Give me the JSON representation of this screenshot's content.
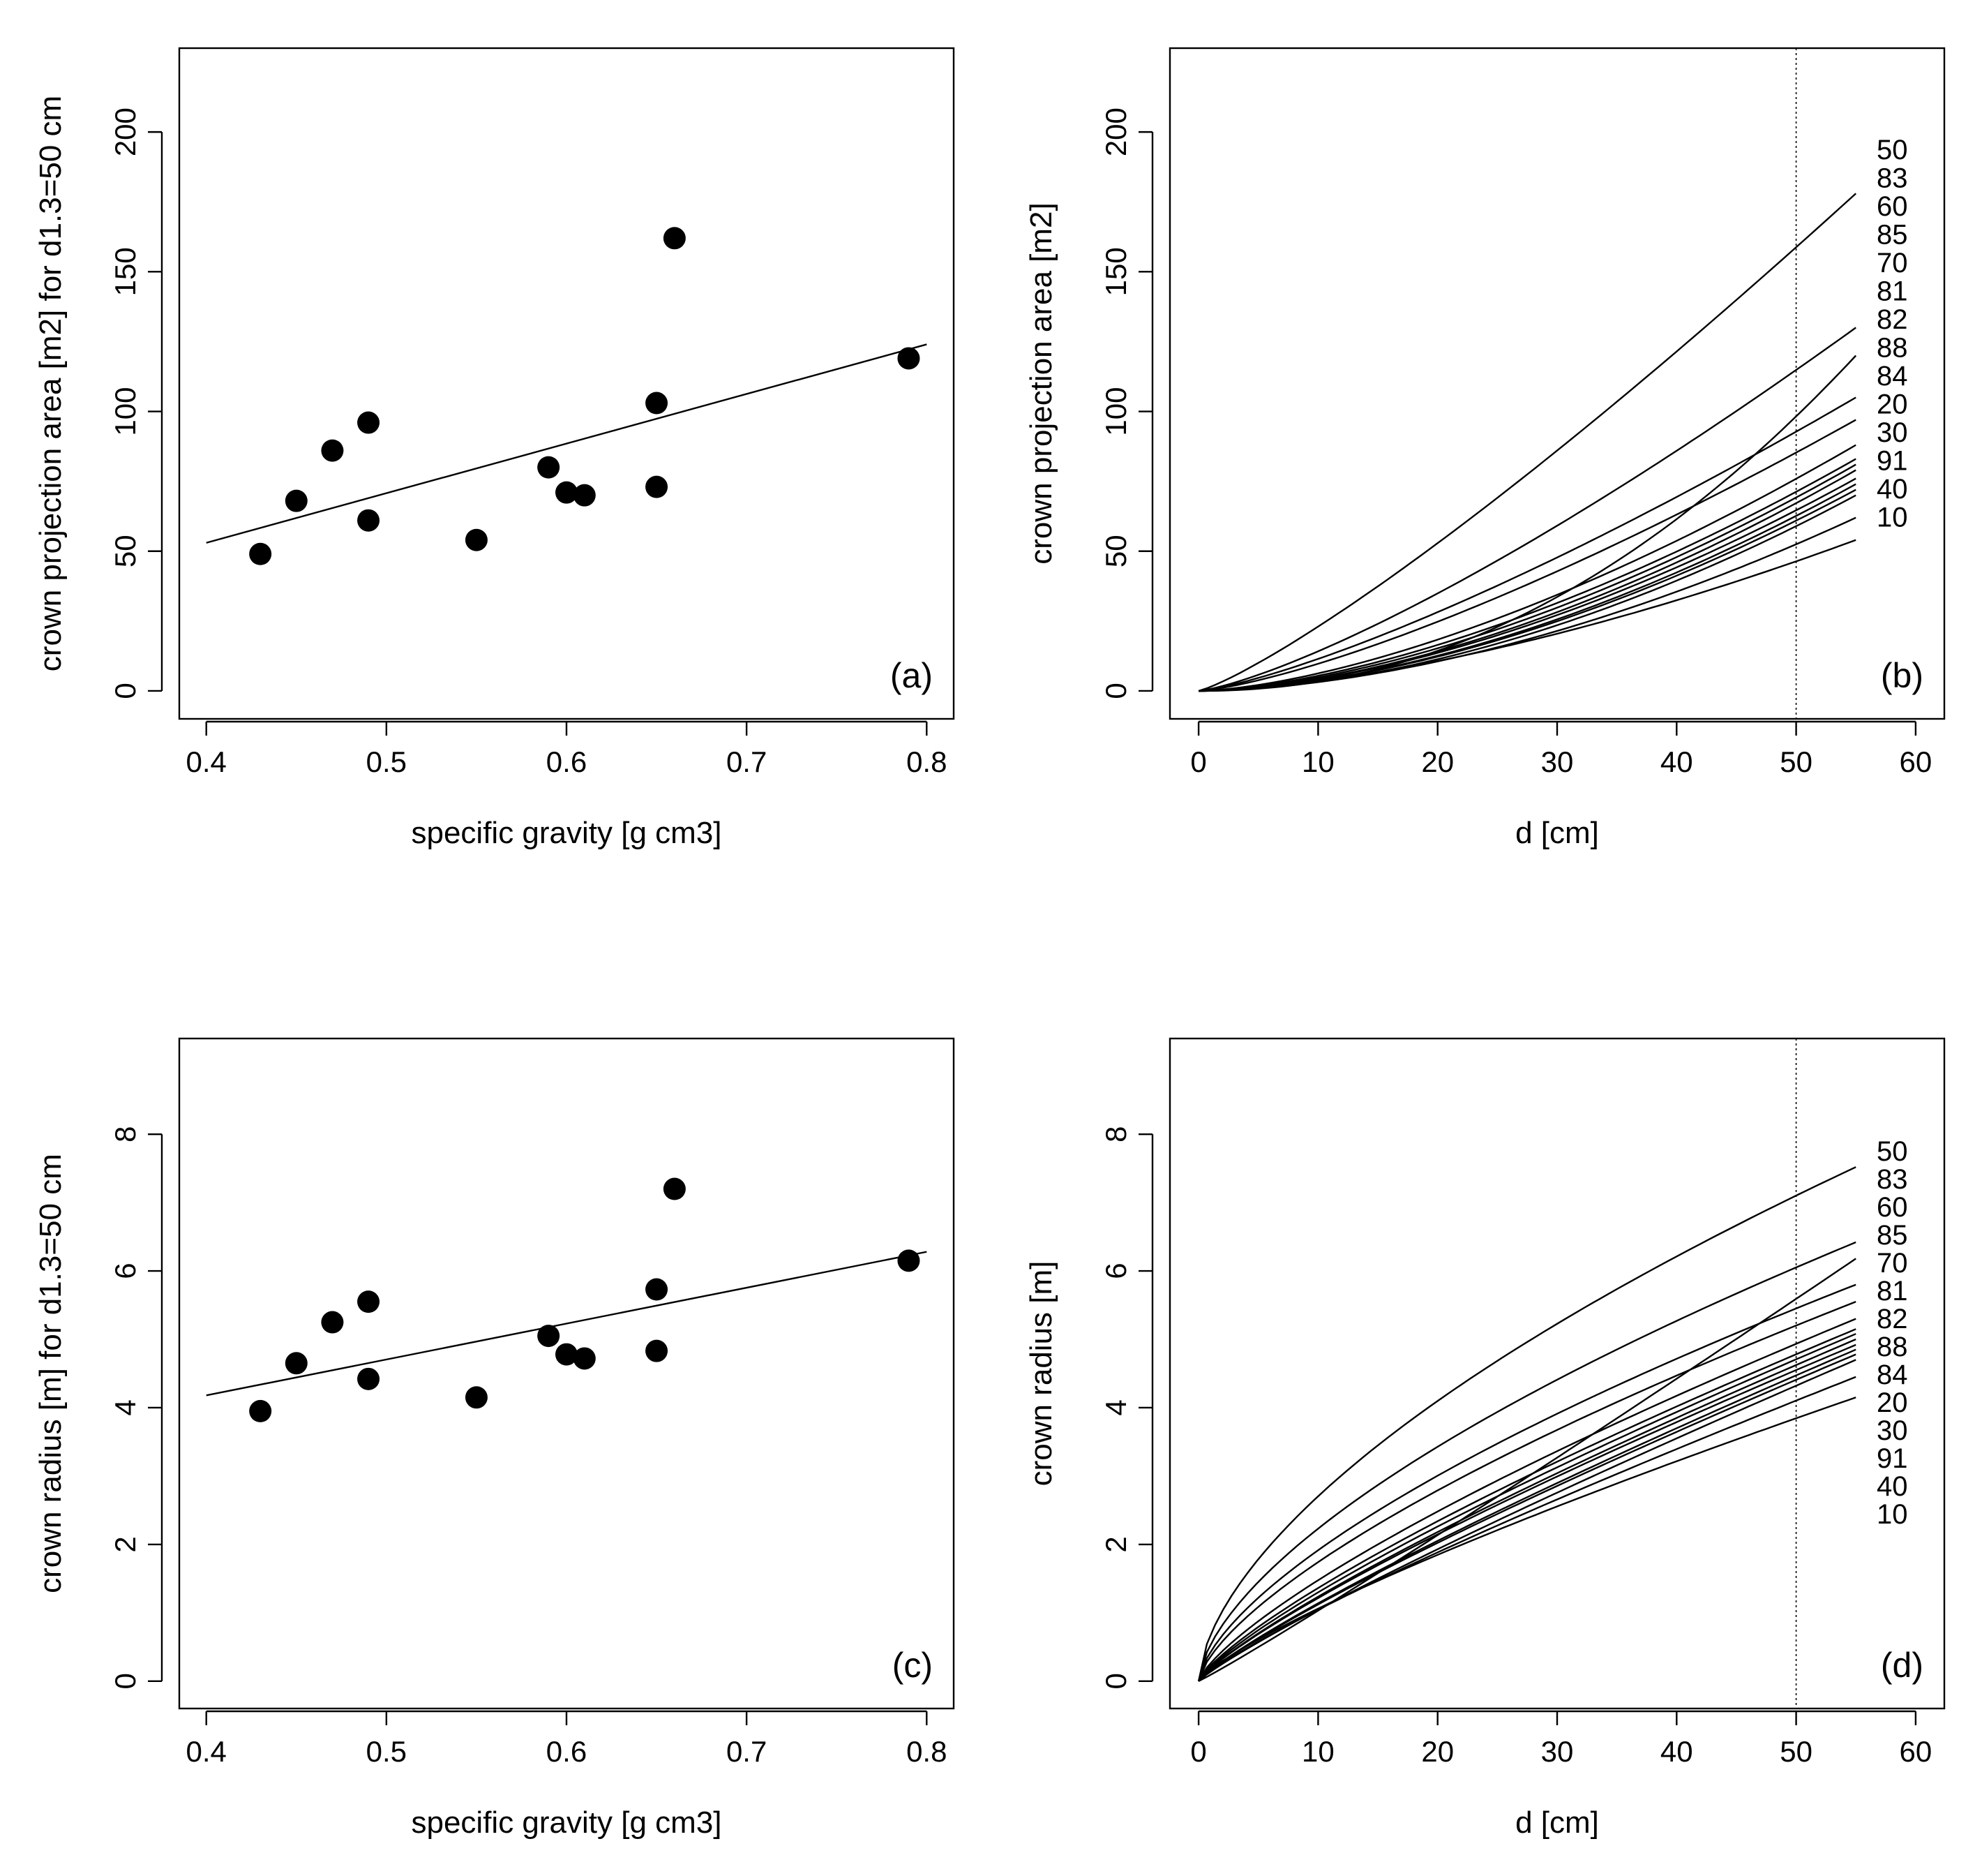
{
  "colors": {
    "ink": "#000000",
    "background": "#ffffff"
  },
  "chart_data": [
    {
      "id": "a",
      "type": "scatter",
      "panel_label": "(a)",
      "xlabel": "specific gravity [g cm3]",
      "ylabel": "crown projection area [m2] for d1.3=50 cm",
      "xlim": [
        0.385,
        0.815
      ],
      "ylim": [
        -10,
        230
      ],
      "xticks": [
        0.4,
        0.5,
        0.6,
        0.7,
        0.8
      ],
      "xtick_labels": [
        "0.4",
        "0.5",
        "0.6",
        "0.7",
        "0.8"
      ],
      "yticks": [
        0,
        50,
        100,
        150,
        200
      ],
      "ytick_labels": [
        "0",
        "50",
        "100",
        "150",
        "200"
      ],
      "points": [
        {
          "x": 0.43,
          "y": 49
        },
        {
          "x": 0.45,
          "y": 68
        },
        {
          "x": 0.47,
          "y": 86
        },
        {
          "x": 0.49,
          "y": 96
        },
        {
          "x": 0.49,
          "y": 61
        },
        {
          "x": 0.55,
          "y": 54
        },
        {
          "x": 0.59,
          "y": 80
        },
        {
          "x": 0.6,
          "y": 71
        },
        {
          "x": 0.61,
          "y": 70
        },
        {
          "x": 0.65,
          "y": 103
        },
        {
          "x": 0.65,
          "y": 73
        },
        {
          "x": 0.66,
          "y": 162
        },
        {
          "x": 0.79,
          "y": 119
        }
      ],
      "fit_line": [
        {
          "x": 0.4,
          "y": 53
        },
        {
          "x": 0.8,
          "y": 124
        }
      ]
    },
    {
      "id": "b",
      "type": "line",
      "panel_label": "(b)",
      "xlabel": "d [cm]",
      "ylabel": "crown projection area [m2]",
      "xlim": [
        -2.4,
        62.4
      ],
      "ylim": [
        -10,
        230
      ],
      "xticks": [
        0,
        10,
        20,
        30,
        40,
        50,
        60
      ],
      "xtick_labels": [
        "0",
        "10",
        "20",
        "30",
        "40",
        "50",
        "60"
      ],
      "yticks": [
        0,
        50,
        100,
        150,
        200
      ],
      "ytick_labels": [
        "0",
        "50",
        "100",
        "150",
        "200"
      ],
      "reference_line_x": 50,
      "x_max": 55,
      "series_end_values": [
        178,
        130,
        120,
        105,
        97,
        88,
        83,
        81,
        79,
        76,
        74,
        72,
        70,
        62,
        54
      ],
      "series_exponents": [
        1.2,
        1.3,
        2.1,
        1.3,
        1.35,
        1.55,
        1.6,
        1.65,
        1.7,
        1.7,
        1.75,
        1.75,
        1.8,
        1.75,
        1.6
      ],
      "curve_labels": [
        "50",
        "83",
        "60",
        "85",
        "70",
        "81",
        "82",
        "88",
        "84",
        "20",
        "30",
        "91",
        "40",
        "10"
      ]
    },
    {
      "id": "c",
      "type": "scatter",
      "panel_label": "(c)",
      "xlabel": "specific gravity [g cm3]",
      "ylabel": "crown radius [m] for d1.3=50 cm",
      "xlim": [
        0.385,
        0.815
      ],
      "ylim": [
        -0.4,
        9.4
      ],
      "xticks": [
        0.4,
        0.5,
        0.6,
        0.7,
        0.8
      ],
      "xtick_labels": [
        "0.4",
        "0.5",
        "0.6",
        "0.7",
        "0.8"
      ],
      "yticks": [
        0,
        2,
        4,
        6,
        8
      ],
      "ytick_labels": [
        "0",
        "2",
        "4",
        "6",
        "8"
      ],
      "points": [
        {
          "x": 0.43,
          "y": 3.95
        },
        {
          "x": 0.45,
          "y": 4.65
        },
        {
          "x": 0.47,
          "y": 5.25
        },
        {
          "x": 0.49,
          "y": 5.55
        },
        {
          "x": 0.49,
          "y": 4.42
        },
        {
          "x": 0.55,
          "y": 4.15
        },
        {
          "x": 0.59,
          "y": 5.05
        },
        {
          "x": 0.6,
          "y": 4.78
        },
        {
          "x": 0.61,
          "y": 4.72
        },
        {
          "x": 0.65,
          "y": 5.73
        },
        {
          "x": 0.65,
          "y": 4.83
        },
        {
          "x": 0.66,
          "y": 7.2
        },
        {
          "x": 0.79,
          "y": 6.15
        }
      ],
      "fit_line": [
        {
          "x": 0.4,
          "y": 4.18
        },
        {
          "x": 0.8,
          "y": 6.28
        }
      ]
    },
    {
      "id": "d",
      "type": "line",
      "panel_label": "(d)",
      "xlabel": "d [cm]",
      "ylabel": "crown radius [m]",
      "xlim": [
        -2.4,
        62.4
      ],
      "ylim": [
        -0.4,
        9.4
      ],
      "xticks": [
        0,
        10,
        20,
        30,
        40,
        50,
        60
      ],
      "xtick_labels": [
        "0",
        "10",
        "20",
        "30",
        "40",
        "50",
        "60"
      ],
      "yticks": [
        0,
        2,
        4,
        6,
        8
      ],
      "ytick_labels": [
        "0",
        "2",
        "4",
        "6",
        "8"
      ],
      "reference_line_x": 50,
      "x_max": 55,
      "series_end_values": [
        7.52,
        6.42,
        6.18,
        5.8,
        5.55,
        5.3,
        5.15,
        5.08,
        5.0,
        4.92,
        4.85,
        4.78,
        4.7,
        4.45,
        4.15
      ],
      "series_exponents": [
        0.6,
        0.62,
        1.05,
        0.65,
        0.68,
        0.75,
        0.78,
        0.8,
        0.82,
        0.82,
        0.85,
        0.85,
        0.88,
        0.85,
        0.8
      ],
      "curve_labels": [
        "50",
        "83",
        "60",
        "85",
        "70",
        "81",
        "82",
        "88",
        "84",
        "20",
        "30",
        "91",
        "40",
        "10"
      ]
    }
  ]
}
